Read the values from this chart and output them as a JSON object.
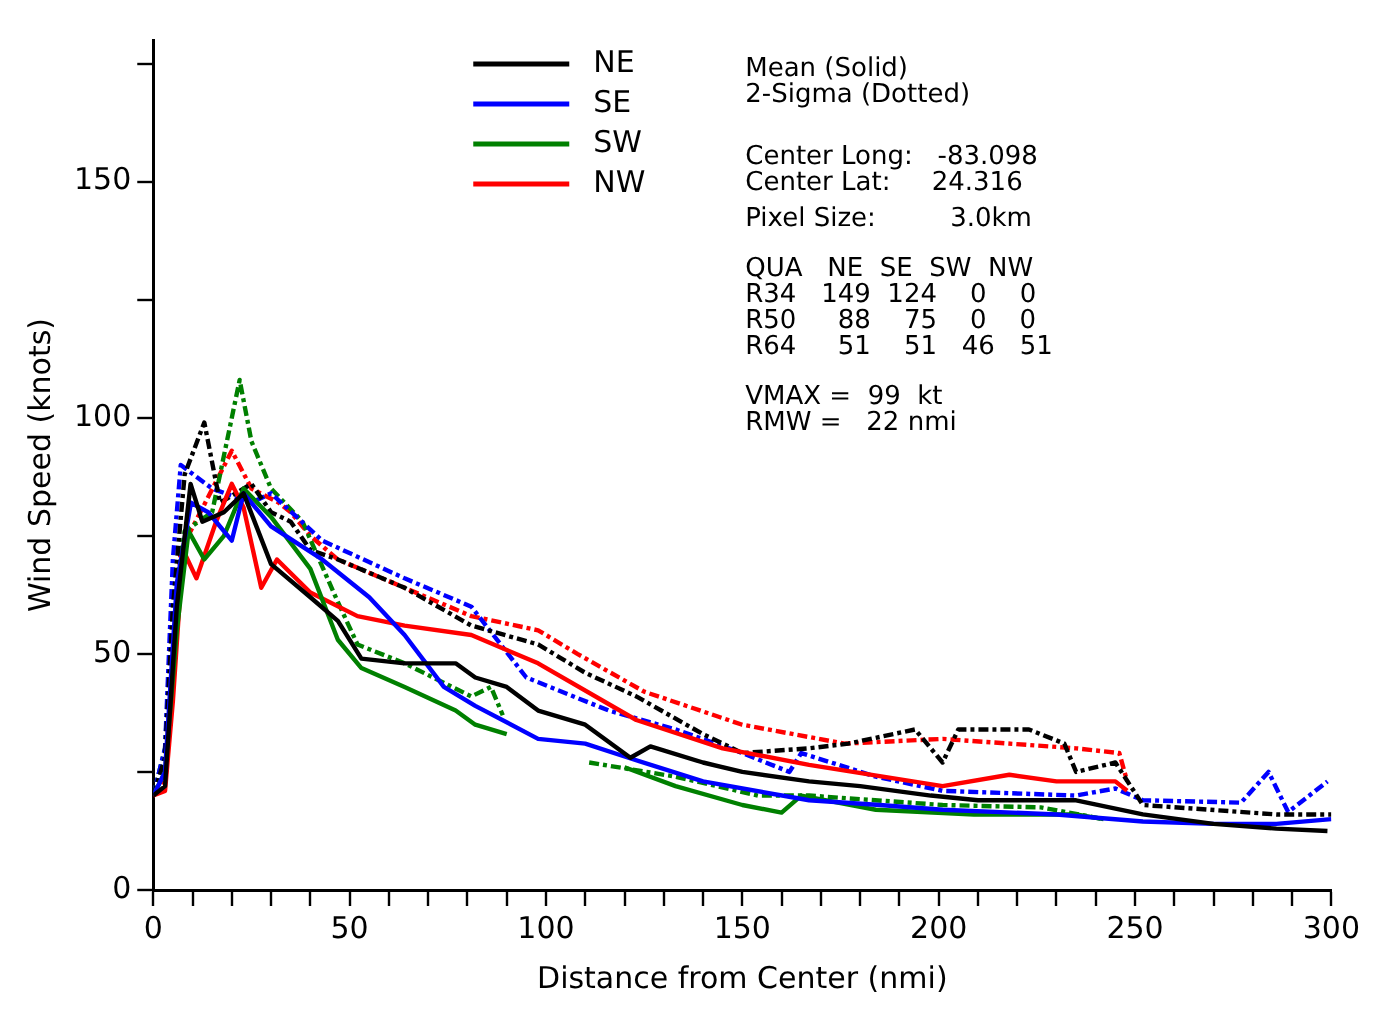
{
  "chart_data": {
    "type": "line",
    "xlabel": "Distance from Center (nmi)",
    "ylabel": "Wind Speed (knots)",
    "xlim": [
      0,
      300
    ],
    "ylim": [
      0,
      180
    ],
    "xticks": [
      0,
      {
        "value": 10,
        "label": null
      },
      {
        "value": 20,
        "label": null
      },
      {
        "value": 30,
        "label": null
      },
      {
        "value": 40,
        "label": null
      },
      50,
      {
        "value": 60,
        "label": null
      },
      {
        "value": 70,
        "label": null
      },
      {
        "value": 80,
        "label": null
      },
      {
        "value": 90,
        "label": null
      },
      100,
      {
        "value": 110,
        "label": null
      },
      {
        "value": 120,
        "label": null
      },
      {
        "value": 130,
        "label": null
      },
      {
        "value": 140,
        "label": null
      },
      150,
      {
        "value": 160,
        "label": null
      },
      {
        "value": 170,
        "label": null
      },
      {
        "value": 180,
        "label": null
      },
      {
        "value": 190,
        "label": null
      },
      200,
      {
        "value": 210,
        "label": null
      },
      {
        "value": 220,
        "label": null
      },
      {
        "value": 230,
        "label": null
      },
      {
        "value": 240,
        "label": null
      },
      250,
      {
        "value": 260,
        "label": null
      },
      {
        "value": 270,
        "label": null
      },
      {
        "value": 280,
        "label": null
      },
      {
        "value": 290,
        "label": null
      },
      300
    ],
    "yticks": [
      0,
      {
        "value": 25,
        "label": null
      },
      50,
      {
        "value": 75,
        "label": null
      },
      100,
      {
        "value": 125,
        "label": null
      },
      150,
      {
        "value": 175,
        "label": null
      }
    ],
    "grid": false,
    "legend": "top",
    "marker": "none",
    "series": [
      {
        "name": "NE",
        "color": "#000000",
        "line_style": "solid",
        "x": [
          0,
          3,
          6,
          9.5,
          12.5,
          18,
          23,
          30,
          40,
          47,
          53,
          64,
          77,
          82,
          90,
          98,
          110,
          121.5,
          126.6,
          140,
          150,
          167,
          180,
          198,
          210,
          235,
          252,
          270,
          286,
          299
        ],
        "values": [
          20,
          22,
          60,
          86,
          78,
          80,
          84,
          69,
          62,
          57,
          49,
          48,
          48,
          45,
          43,
          38,
          35,
          28,
          30.4,
          27,
          25,
          23,
          22,
          20,
          19,
          19,
          16,
          14,
          13,
          12.5
        ]
      },
      {
        "name": "SE",
        "color": "#0000ff",
        "line_style": "solid",
        "x": [
          0,
          3,
          6,
          9.6,
          14,
          20,
          23,
          30,
          43,
          55,
          64,
          74,
          82,
          98,
          110,
          121,
          140,
          167,
          185,
          201,
          230,
          252,
          270,
          286,
          300
        ],
        "values": [
          20,
          25,
          65,
          82,
          80,
          74,
          84,
          77,
          70,
          62,
          54,
          43,
          39,
          32,
          31,
          28,
          23,
          19,
          18,
          17,
          16,
          14.5,
          14,
          14,
          15
        ]
      },
      {
        "name": "SW",
        "color": "#008000",
        "line_style": "solid",
        "x": [
          0,
          3,
          6,
          9,
          13,
          18,
          23,
          30,
          40,
          47,
          53,
          64,
          77,
          82,
          90,
          111,
          120,
          133,
          150,
          160,
          165,
          184,
          209,
          235,
          242
        ],
        "values": [
          20,
          25,
          55,
          76,
          70,
          75,
          85,
          79,
          68,
          53,
          47,
          43,
          38,
          35,
          33,
          null,
          26,
          22,
          18,
          16.4,
          20,
          17,
          16,
          16,
          15
        ]
      },
      {
        "name": "NW",
        "color": "#ff0000",
        "line_style": "solid",
        "x": [
          0,
          3,
          5,
          7.6,
          11,
          16,
          20,
          23,
          27.5,
          31.5,
          40,
          52,
          64,
          81,
          98,
          123,
          145,
          167,
          201,
          218,
          230,
          245,
          248
        ],
        "values": [
          20,
          21,
          40,
          72,
          66,
          78,
          86,
          81,
          64,
          70,
          63,
          58,
          56,
          54,
          48,
          36,
          30,
          26.5,
          22,
          24.4,
          23,
          23,
          21
        ]
      },
      {
        "color": "#000000",
        "line_style": "dashed",
        "x": [
          0,
          3,
          5,
          8,
          13,
          17,
          25,
          30,
          35,
          40,
          47,
          64,
          81,
          98,
          110,
          123,
          140,
          150,
          167,
          177,
          194,
          201,
          205,
          223,
          232,
          235,
          245,
          252,
          269,
          286,
          300
        ],
        "values": [
          20,
          28,
          60,
          88,
          99,
          82,
          86,
          80,
          78,
          72,
          70,
          64,
          56,
          52,
          46,
          41,
          33,
          29,
          30,
          31,
          34,
          27,
          34,
          34,
          31,
          25,
          27,
          18,
          17,
          16,
          16
        ]
      },
      {
        "color": "#0000ff",
        "line_style": "dashed",
        "x": [
          0,
          3,
          5,
          7,
          15,
          25,
          30,
          43,
          64,
          81,
          95,
          116,
          133,
          150,
          162,
          165,
          184,
          201,
          235,
          245,
          252,
          277,
          284,
          289,
          299
        ],
        "values": [
          20,
          30,
          70,
          90,
          85,
          82,
          84,
          74,
          66,
          60,
          45,
          38,
          34,
          29,
          25,
          29,
          24,
          21,
          20,
          21.5,
          19,
          18.5,
          25,
          16.5,
          23
        ]
      },
      {
        "color": "#008000",
        "line_style": "dashed",
        "x": [
          0,
          3,
          5,
          8,
          15,
          22,
          25,
          30,
          38,
          47,
          52,
          64,
          81,
          86,
          89,
          95,
          111,
          133,
          154,
          167,
          201,
          226,
          242
        ],
        "values": [
          20,
          30,
          60,
          76,
          80,
          108,
          95,
          85,
          78,
          61,
          52,
          48,
          41,
          43,
          37,
          null,
          27,
          24,
          20,
          20,
          18,
          17.5,
          15
        ]
      },
      {
        "color": "#ff0000",
        "line_style": "dashed",
        "x": [
          0,
          3,
          5,
          7,
          12,
          20,
          25,
          32,
          35,
          40,
          47,
          64,
          81,
          98,
          108,
          125,
          150,
          176,
          201,
          235,
          246,
          248
        ],
        "values": [
          20,
          24,
          50,
          72,
          80,
          93,
          85,
          82,
          80,
          75,
          70,
          64,
          58,
          55,
          50,
          42,
          35,
          31,
          32,
          30,
          29,
          23
        ]
      }
    ],
    "annotations": [
      "Mean (Solid)",
      "2-Sigma (Dotted)",
      "Center Long:   -83.098",
      "Center Lat:     24.316",
      "Pixel Size:         3.0km",
      "QUA   NE  SE  SW  NW",
      "R34   149  124    0    0",
      "R50     88    75    0    0",
      "R64     51    51   46   51",
      "VMAX =  99  kt",
      "RMW =   22 nmi"
    ]
  }
}
